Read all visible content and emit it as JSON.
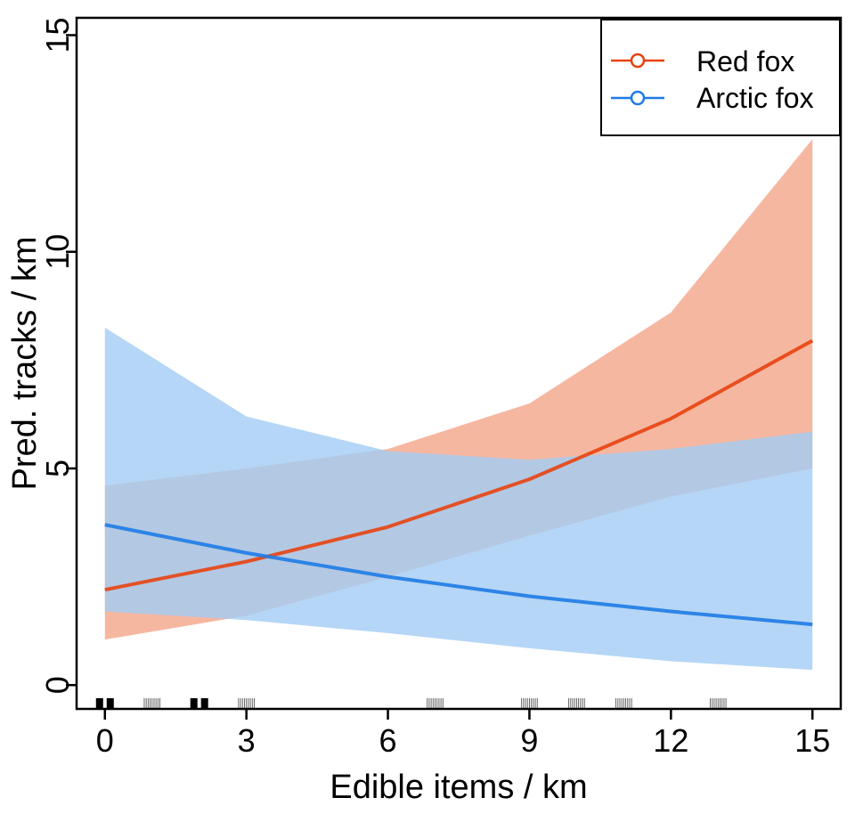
{
  "chart_data": {
    "type": "line",
    "title": "",
    "xlabel": "Edible items / km",
    "ylabel": "Pred. tracks / km",
    "xlim": [
      -0.6,
      15.6
    ],
    "ylim": [
      -0.55,
      15.4
    ],
    "xticks": [
      0,
      3,
      6,
      9,
      12,
      15
    ],
    "yticks": [
      0,
      5,
      10,
      15
    ],
    "legend_position": "top-right",
    "x": [
      0,
      3,
      6,
      9,
      12,
      15
    ],
    "series": [
      {
        "name": "Red fox",
        "color": "#E8420F",
        "band_color": "#F4A58A",
        "values": [
          2.2,
          2.85,
          3.65,
          4.75,
          6.15,
          7.95
        ],
        "lower": [
          1.05,
          1.6,
          2.5,
          3.45,
          4.35,
          5.0
        ],
        "upper": [
          4.6,
          5.0,
          5.45,
          6.5,
          8.6,
          12.6
        ]
      },
      {
        "name": "Arctic fox",
        "color": "#1E7BE6",
        "band_color": "#A3CCF4",
        "values": [
          3.7,
          3.05,
          2.5,
          2.05,
          1.7,
          1.4
        ],
        "lower": [
          1.7,
          1.5,
          1.2,
          0.85,
          0.55,
          0.35
        ],
        "upper": [
          8.25,
          6.2,
          5.4,
          5.2,
          5.45,
          5.85
        ]
      }
    ],
    "rug": [
      {
        "x": 0.0,
        "style": "heavy"
      },
      {
        "x": 2.0,
        "style": "heavy"
      },
      {
        "x": 1.0,
        "style": "light"
      },
      {
        "x": 3.0,
        "style": "light"
      },
      {
        "x": 7.0,
        "style": "light"
      },
      {
        "x": 9.0,
        "style": "light"
      },
      {
        "x": 10.0,
        "style": "light"
      },
      {
        "x": 11.0,
        "style": "light"
      },
      {
        "x": 13.0,
        "style": "light"
      }
    ]
  }
}
